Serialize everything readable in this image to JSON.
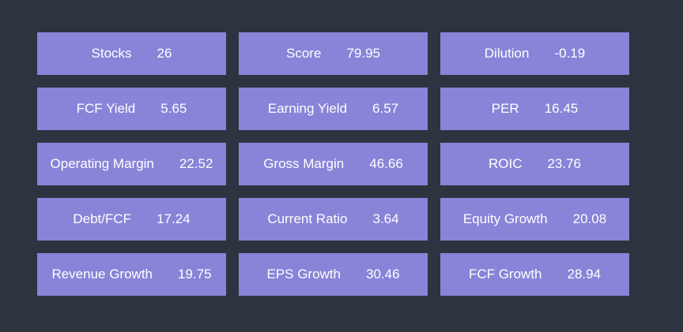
{
  "metrics": [
    {
      "label": "Stocks",
      "value": "26"
    },
    {
      "label": "Score",
      "value": "79.95"
    },
    {
      "label": "Dilution",
      "value": "-0.19"
    },
    {
      "label": "FCF Yield",
      "value": "5.65"
    },
    {
      "label": "Earning Yield",
      "value": "6.57"
    },
    {
      "label": "PER",
      "value": "16.45"
    },
    {
      "label": "Operating Margin",
      "value": "22.52"
    },
    {
      "label": "Gross Margin",
      "value": "46.66"
    },
    {
      "label": "ROIC",
      "value": "23.76"
    },
    {
      "label": "Debt/FCF",
      "value": "17.24"
    },
    {
      "label": "Current Ratio",
      "value": "3.64"
    },
    {
      "label": "Equity Growth",
      "value": "20.08"
    },
    {
      "label": "Revenue Growth",
      "value": "19.75"
    },
    {
      "label": "EPS Growth",
      "value": "30.46"
    },
    {
      "label": "FCF Growth",
      "value": "28.94"
    }
  ],
  "colors": {
    "background": "#2e3340",
    "card": "#8884d8",
    "text": "#ffffff"
  }
}
